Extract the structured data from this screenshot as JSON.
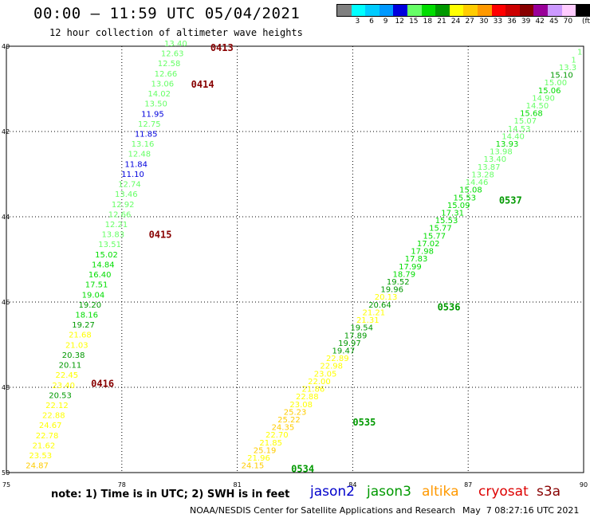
{
  "header": {
    "title": "00:00 – 11:59 UTC 05/04/2021",
    "subtitle": "12 hour collection of altimeter wave heights"
  },
  "color_scale": {
    "unit": "(ft)",
    "swatches": [
      {
        "label": "",
        "color": "#808080"
      },
      {
        "label": "3",
        "color": "#00ffff"
      },
      {
        "label": "6",
        "color": "#00ccff"
      },
      {
        "label": "9",
        "color": "#0099ff"
      },
      {
        "label": "12",
        "color": "#0000dd"
      },
      {
        "label": "15",
        "color": "#66ff66"
      },
      {
        "label": "18",
        "color": "#00dd00"
      },
      {
        "label": "21",
        "color": "#009900"
      },
      {
        "label": "24",
        "color": "#ffff00"
      },
      {
        "label": "27",
        "color": "#ffcc00"
      },
      {
        "label": "30",
        "color": "#ff9900"
      },
      {
        "label": "33",
        "color": "#ff0000"
      },
      {
        "label": "36",
        "color": "#cc0000"
      },
      {
        "label": "39",
        "color": "#880000"
      },
      {
        "label": "42",
        "color": "#990099"
      },
      {
        "label": "45",
        "color": "#cc99ff"
      },
      {
        "label": "70",
        "color": "#ffccff"
      },
      {
        "label": "",
        "color": "#000000"
      }
    ]
  },
  "map": {
    "x_ticks": [
      "75",
      "78",
      "81",
      "84",
      "87",
      "90"
    ],
    "y_ticks": [
      "40",
      "42",
      "44",
      "46",
      "48",
      "50"
    ],
    "x_range": [
      75,
      90
    ],
    "y_range": [
      40,
      50
    ],
    "grid": "dotted"
  },
  "tracks": [
    {
      "name": "track-west",
      "start": [
        79.4,
        40.0
      ],
      "end": [
        75.8,
        49.9
      ],
      "values": [
        "13.40",
        "12.63",
        "12.58",
        "12.66",
        "13.06",
        "14.02",
        "13.50",
        "11.95",
        "12.75",
        "11.85",
        "13.16",
        "12.48",
        "11.84",
        "11.10",
        "12.74",
        "13.46",
        "12.92",
        "12.66",
        "12.21",
        "13.83",
        "13.51",
        "15.02",
        "14.84",
        "16.40",
        "17.51",
        "19.04",
        "19.20",
        "18.16",
        "19.27",
        "21.68",
        "21.03",
        "20.38",
        "20.11",
        "22.45",
        "23.40",
        "20.53",
        "22.12",
        "22.88",
        "24.67",
        "22.78",
        "21.62",
        "23.53",
        "24.87"
      ],
      "colors": [
        "#66ff66",
        "#66ff66",
        "#66ff66",
        "#66ff66",
        "#66ff66",
        "#66ff66",
        "#66ff66",
        "#0000dd",
        "#66ff66",
        "#0000dd",
        "#66ff66",
        "#66ff66",
        "#0000dd",
        "#0000dd",
        "#66ff66",
        "#66ff66",
        "#66ff66",
        "#66ff66",
        "#66ff66",
        "#66ff66",
        "#66ff66",
        "#00dd00",
        "#00dd00",
        "#00dd00",
        "#00dd00",
        "#00dd00",
        "#009900",
        "#00dd00",
        "#009900",
        "#ffff00",
        "#ffff00",
        "#009900",
        "#009900",
        "#ffff00",
        "#ffff00",
        "#009900",
        "#ffff00",
        "#ffff00",
        "#ffff00",
        "#ffff00",
        "#ffff00",
        "#ffff00",
        "#ffcc00"
      ]
    },
    {
      "name": "track-east",
      "start": [
        89.9,
        40.2
      ],
      "end": [
        81.4,
        49.9
      ],
      "values": [
        "1",
        "1",
        "13.3",
        "15.10",
        "15.00",
        "15.06",
        "14.90",
        "14.50",
        "15.68",
        "15.07",
        "14.53",
        "14.40",
        "13.93",
        "13.98",
        "13.40",
        "13.87",
        "13.28",
        "14.46",
        "15.08",
        "15.53",
        "15.09",
        "17.31",
        "15.53",
        "15.77",
        "15.77",
        "17.02",
        "17.98",
        "17.83",
        "17.99",
        "18.79",
        "19.52",
        "19.96",
        "20.13",
        "20.64",
        "21.21",
        "21.31",
        "19.54",
        "17.89",
        "19.97",
        "19.47",
        "22.89",
        "22.98",
        "23.05",
        "22.00",
        "21.86",
        "22.88",
        "23.08",
        "25.23",
        "25.22",
        "24.35",
        "22.70",
        "21.85",
        "25.19",
        "21.96",
        "24.15"
      ],
      "colors": [
        "#66ff66",
        "#66ff66",
        "#66ff66",
        "#009900",
        "#66ff66",
        "#00dd00",
        "#66ff66",
        "#66ff66",
        "#00dd00",
        "#66ff66",
        "#66ff66",
        "#66ff66",
        "#00dd00",
        "#66ff66",
        "#66ff66",
        "#66ff66",
        "#66ff66",
        "#66ff66",
        "#00dd00",
        "#00dd00",
        "#00dd00",
        "#00dd00",
        "#00dd00",
        "#00dd00",
        "#00dd00",
        "#00dd00",
        "#00dd00",
        "#00dd00",
        "#00dd00",
        "#00dd00",
        "#009900",
        "#009900",
        "#ffff00",
        "#009900",
        "#ffff00",
        "#ffff00",
        "#009900",
        "#009900",
        "#009900",
        "#009900",
        "#ffff00",
        "#ffff00",
        "#ffff00",
        "#ffff00",
        "#ffff00",
        "#ffff00",
        "#ffff00",
        "#ffcc00",
        "#ffcc00",
        "#ffcc00",
        "#ffff00",
        "#ffff00",
        "#ffcc00",
        "#ffff00",
        "#ffcc00"
      ]
    }
  ],
  "time_labels": [
    {
      "text": "0413",
      "lon": 80.3,
      "lat": 40.02,
      "color": "#880000"
    },
    {
      "text": "0414",
      "lon": 79.8,
      "lat": 40.88,
      "color": "#880000"
    },
    {
      "text": "0415",
      "lon": 78.7,
      "lat": 44.4,
      "color": "#880000"
    },
    {
      "text": "0416",
      "lon": 77.2,
      "lat": 47.9,
      "color": "#880000"
    },
    {
      "text": "0537",
      "lon": 87.8,
      "lat": 43.6,
      "color": "#009900"
    },
    {
      "text": "0536",
      "lon": 86.2,
      "lat": 46.1,
      "color": "#009900"
    },
    {
      "text": "0535",
      "lon": 84.0,
      "lat": 48.8,
      "color": "#009900"
    },
    {
      "text": "0534",
      "lon": 82.4,
      "lat": 49.9,
      "color": "#009900"
    }
  ],
  "note": "note: 1) Time is in UTC; 2) SWH is in feet",
  "satellites": [
    {
      "name": "jason2",
      "color": "#0000cc"
    },
    {
      "name": "jason3",
      "color": "#009900"
    },
    {
      "name": "altika",
      "color": "#ff9900"
    },
    {
      "name": "cryosat",
      "color": "#dd0000"
    },
    {
      "name": "s3a",
      "color": "#880000"
    }
  ],
  "footer": {
    "credit": "NOAA/NESDIS Center for Satellite Applications and Research",
    "timestamp": "May  7 08:27:16 UTC 2021"
  }
}
